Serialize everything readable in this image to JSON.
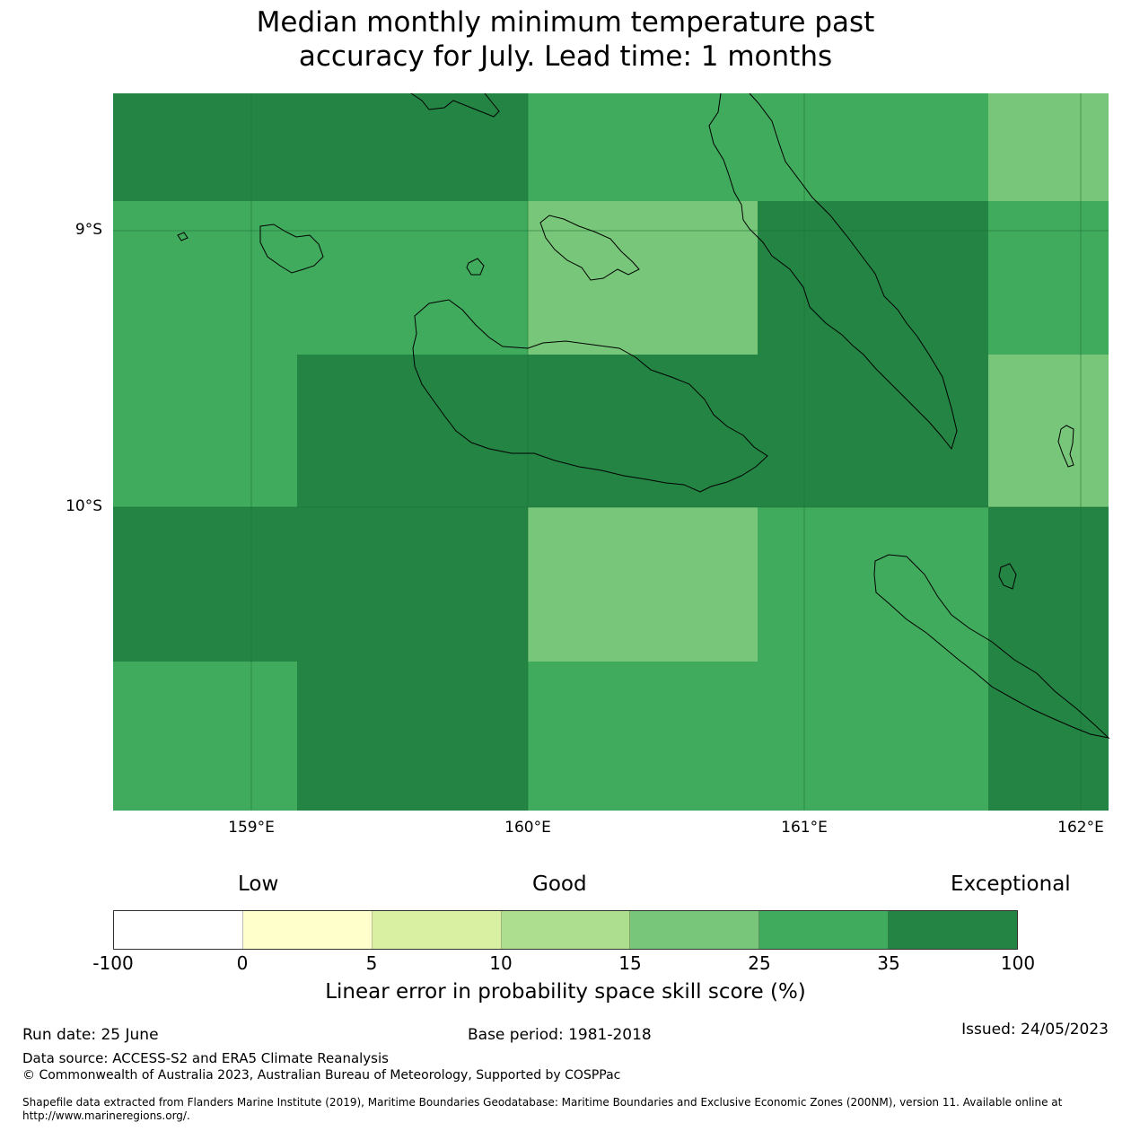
{
  "title": {
    "line1": "Median monthly minimum temperature past",
    "line2": "accuracy for July. Lead time: 1 months"
  },
  "map": {
    "lat_labels": [
      "9°S",
      "10°S"
    ],
    "lon_labels": [
      "159°E",
      "160°E",
      "161°E",
      "162°E"
    ],
    "extent": {
      "lon_min": 158.5,
      "lon_max": 162.1,
      "lat_top": -8.5,
      "lat_bottom": -11.1
    },
    "grid_categories": [
      [
        "35-100",
        "35-100",
        "25-35",
        "25-35",
        "25-35",
        "15-25"
      ],
      [
        "25-35",
        "25-35",
        "15-25",
        "35-100",
        "35-100",
        "25-35"
      ],
      [
        "25-35",
        "35-100",
        "35-100",
        "35-100",
        "35-100",
        "15-25"
      ],
      [
        "35-100",
        "35-100",
        "15-25",
        "25-35",
        "25-35",
        "35-100"
      ],
      [
        "25-35",
        "35-100",
        "25-35",
        "25-35",
        "25-35",
        "35-100"
      ]
    ]
  },
  "colorbar": {
    "headings": [
      "Low",
      "Good",
      "Exceptional"
    ],
    "ticks": [
      "-100",
      "0",
      "5",
      "10",
      "15",
      "25",
      "35",
      "100"
    ],
    "colors": [
      "#ffffff",
      "#ffffcc",
      "#d9f0a3",
      "#addd8e",
      "#78c679",
      "#41ab5d",
      "#238443"
    ],
    "label": "Linear error in probability space skill score (%)"
  },
  "footer": {
    "run_date": "Run date: 25 June",
    "base_period": "Base period: 1981-2018",
    "issued": "Issued: 24/05/2023",
    "data_source": "Data source: ACCESS-S2 and ERA5 Climate Reanalysis",
    "copyright": "© Commonwealth of Australia 2023, Australian Bureau of Meteorology, Supported by COSPPac",
    "shapefile": "Shapefile data extracted from Flanders Marine Institute (2019), Maritime Boundaries Geodatabase: Maritime Boundaries and Exclusive Economic Zones (200NM), version 11. Available online at http://www.marineregions.org/."
  }
}
